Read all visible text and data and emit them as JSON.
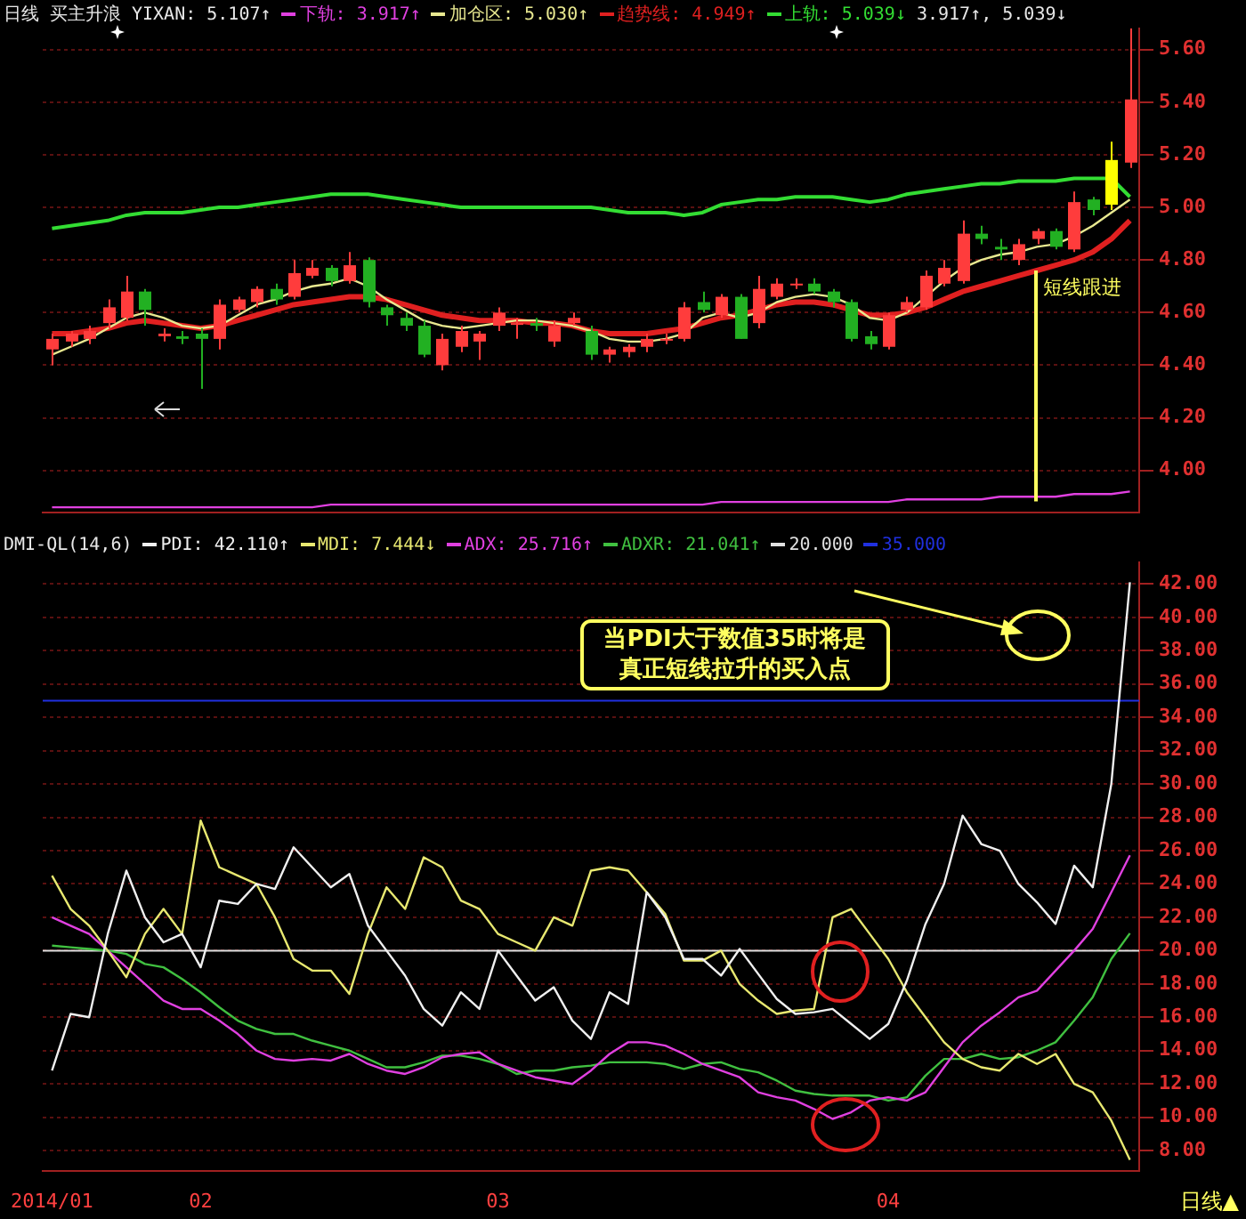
{
  "chart_data": [
    {
      "type": "candlestick",
      "title": "日线",
      "subtitle": "买主升浪",
      "annotations": [
        "YIXAN: 5.107↑",
        "3.917↑, 5.039↓",
        {
          "text": "短线跟进",
          "y": 4.88
        }
      ],
      "categories": [
        "2014/01",
        null,
        null,
        null,
        null,
        null,
        null,
        null,
        "02",
        null,
        null,
        null,
        null,
        null,
        null,
        null,
        null,
        null,
        null,
        null,
        null,
        null,
        null,
        null,
        "03",
        null,
        null,
        null,
        null,
        null,
        null,
        null,
        null,
        null,
        null,
        null,
        null,
        null,
        null,
        null,
        null,
        null,
        null,
        null,
        null,
        "04",
        null,
        null,
        null,
        null,
        null,
        null,
        null,
        null,
        null,
        null,
        null,
        null,
        null
      ],
      "ohlc": [
        [
          4.46,
          4.52,
          4.4,
          4.5
        ],
        [
          4.49,
          4.53,
          4.47,
          4.52
        ],
        [
          4.5,
          4.55,
          4.48,
          4.53
        ],
        [
          4.56,
          4.65,
          4.54,
          4.62
        ],
        [
          4.58,
          4.74,
          4.57,
          4.68
        ],
        [
          4.68,
          4.69,
          4.55,
          4.61
        ],
        [
          4.51,
          4.54,
          4.49,
          4.52
        ],
        [
          4.51,
          4.53,
          4.48,
          4.5
        ],
        [
          4.52,
          4.54,
          4.31,
          4.5
        ],
        [
          4.5,
          4.65,
          4.46,
          4.63
        ],
        [
          4.61,
          4.66,
          4.6,
          4.65
        ],
        [
          4.64,
          4.7,
          4.62,
          4.69
        ],
        [
          4.69,
          4.71,
          4.63,
          4.65
        ],
        [
          4.66,
          4.8,
          4.65,
          4.75
        ],
        [
          4.74,
          4.8,
          4.73,
          4.77
        ],
        [
          4.77,
          4.78,
          4.7,
          4.72
        ],
        [
          4.72,
          4.83,
          4.71,
          4.78
        ],
        [
          4.8,
          4.81,
          4.62,
          4.64
        ],
        [
          4.62,
          4.63,
          4.55,
          4.59
        ],
        [
          4.58,
          4.6,
          4.53,
          4.55
        ],
        [
          4.55,
          4.57,
          4.43,
          4.44
        ],
        [
          4.4,
          4.52,
          4.38,
          4.5
        ],
        [
          4.47,
          4.55,
          4.45,
          4.53
        ],
        [
          4.49,
          4.53,
          4.42,
          4.52
        ],
        [
          4.55,
          4.62,
          4.53,
          4.6
        ],
        [
          4.56,
          4.58,
          4.5,
          4.56
        ],
        [
          4.56,
          4.58,
          4.53,
          4.55
        ],
        [
          4.49,
          4.57,
          4.47,
          4.55
        ],
        [
          4.56,
          4.6,
          4.55,
          4.58
        ],
        [
          4.53,
          4.55,
          4.42,
          4.44
        ],
        [
          4.44,
          4.47,
          4.41,
          4.46
        ],
        [
          4.45,
          4.48,
          4.43,
          4.47
        ],
        [
          4.47,
          4.52,
          4.45,
          4.5
        ],
        [
          4.5,
          4.52,
          4.48,
          4.5
        ],
        [
          4.5,
          4.64,
          4.49,
          4.62
        ],
        [
          4.64,
          4.68,
          4.6,
          4.61
        ],
        [
          4.59,
          4.67,
          4.58,
          4.66
        ],
        [
          4.66,
          4.67,
          4.5,
          4.5
        ],
        [
          4.56,
          4.74,
          4.54,
          4.69
        ],
        [
          4.66,
          4.73,
          4.65,
          4.71
        ],
        [
          4.71,
          4.73,
          4.69,
          4.71
        ],
        [
          4.71,
          4.73,
          4.67,
          4.68
        ],
        [
          4.68,
          4.69,
          4.62,
          4.64
        ],
        [
          4.64,
          4.65,
          4.49,
          4.5
        ],
        [
          4.51,
          4.53,
          4.46,
          4.48
        ],
        [
          4.47,
          4.6,
          4.46,
          4.59
        ],
        [
          4.61,
          4.66,
          4.6,
          4.64
        ],
        [
          4.62,
          4.76,
          4.61,
          4.74
        ],
        [
          4.71,
          4.8,
          4.7,
          4.77
        ],
        [
          4.72,
          4.95,
          4.71,
          4.9
        ],
        [
          4.9,
          4.93,
          4.86,
          4.88
        ],
        [
          4.85,
          4.88,
          4.8,
          4.84
        ],
        [
          4.8,
          4.88,
          4.78,
          4.86
        ],
        [
          4.88,
          4.92,
          4.86,
          4.91
        ],
        [
          4.91,
          4.92,
          4.84,
          4.85
        ],
        [
          4.84,
          5.06,
          4.83,
          5.02
        ],
        [
          5.03,
          5.04,
          4.97,
          4.99
        ],
        [
          5.01,
          5.25,
          4.99,
          5.18
        ],
        [
          5.17,
          5.68,
          5.15,
          5.41
        ]
      ],
      "colors": [
        "#ff3c3c",
        "#ff3c3c",
        "#ff3c3c",
        "#ff3c3c",
        "#ff3c3c",
        "#22b022",
        "#ff3c3c",
        "#22b022",
        "#22b022",
        "#ff3c3c",
        "#ff3c3c",
        "#ff3c3c",
        "#22b022",
        "#ff3c3c",
        "#ff3c3c",
        "#22b022",
        "#ff3c3c",
        "#22b022",
        "#22b022",
        "#22b022",
        "#22b022",
        "#ff3c3c",
        "#ff3c3c",
        "#ff3c3c",
        "#ff3c3c",
        "#ff3c3c",
        "#22b022",
        "#ff3c3c",
        "#ff3c3c",
        "#22b022",
        "#ff3c3c",
        "#ff3c3c",
        "#ff3c3c",
        "#ff3c3c",
        "#ff3c3c",
        "#22b022",
        "#ff3c3c",
        "#22b022",
        "#ff3c3c",
        "#ff3c3c",
        "#ff3c3c",
        "#22b022",
        "#22b022",
        "#22b022",
        "#22b022",
        "#ff3c3c",
        "#ff3c3c",
        "#ff3c3c",
        "#ff3c3c",
        "#ff3c3c",
        "#22b022",
        "#22b022",
        "#ff3c3c",
        "#ff3c3c",
        "#22b022",
        "#ff3c3c",
        "#22b022",
        "#ffff00",
        "#ff3c3c"
      ],
      "series": [
        {
          "type": "line",
          "name": "下轨: 3.917↑",
          "color": "#e040e0",
          "values": [
            3.86,
            3.86,
            3.86,
            3.86,
            3.86,
            3.86,
            3.86,
            3.86,
            3.86,
            3.86,
            3.86,
            3.86,
            3.86,
            3.86,
            3.86,
            3.87,
            3.87,
            3.87,
            3.87,
            3.87,
            3.87,
            3.87,
            3.87,
            3.87,
            3.87,
            3.87,
            3.87,
            3.87,
            3.87,
            3.87,
            3.87,
            3.87,
            3.87,
            3.87,
            3.87,
            3.87,
            3.88,
            3.88,
            3.88,
            3.88,
            3.88,
            3.88,
            3.88,
            3.88,
            3.88,
            3.88,
            3.89,
            3.89,
            3.89,
            3.89,
            3.89,
            3.9,
            3.9,
            3.9,
            3.9,
            3.91,
            3.91,
            3.91,
            3.92
          ]
        },
        {
          "type": "line",
          "name": "加仓区: 5.030↑",
          "color": "#e8e890",
          "values": [
            4.44,
            4.47,
            4.5,
            4.54,
            4.58,
            4.6,
            4.58,
            4.55,
            4.54,
            4.55,
            4.59,
            4.63,
            4.65,
            4.68,
            4.7,
            4.71,
            4.73,
            4.7,
            4.65,
            4.61,
            4.57,
            4.55,
            4.54,
            4.55,
            4.56,
            4.57,
            4.57,
            4.56,
            4.55,
            4.53,
            4.5,
            4.49,
            4.49,
            4.5,
            4.52,
            4.58,
            4.6,
            4.58,
            4.6,
            4.64,
            4.66,
            4.67,
            4.66,
            4.63,
            4.58,
            4.57,
            4.6,
            4.66,
            4.72,
            4.77,
            4.8,
            4.82,
            4.83,
            4.85,
            4.86,
            4.89,
            4.93,
            4.98,
            5.03
          ]
        },
        {
          "type": "line",
          "name": "趋势线: 4.949↑",
          "color": "#e02020",
          "values": [
            4.52,
            4.52,
            4.53,
            4.54,
            4.56,
            4.57,
            4.56,
            4.55,
            4.54,
            4.55,
            4.57,
            4.59,
            4.61,
            4.63,
            4.64,
            4.65,
            4.66,
            4.66,
            4.65,
            4.63,
            4.61,
            4.59,
            4.58,
            4.57,
            4.57,
            4.57,
            4.56,
            4.56,
            4.55,
            4.53,
            4.52,
            4.52,
            4.52,
            4.53,
            4.54,
            4.56,
            4.58,
            4.59,
            4.61,
            4.63,
            4.64,
            4.64,
            4.63,
            4.61,
            4.59,
            4.59,
            4.6,
            4.62,
            4.65,
            4.68,
            4.7,
            4.72,
            4.74,
            4.76,
            4.78,
            4.8,
            4.83,
            4.88,
            4.95
          ]
        },
        {
          "type": "line",
          "name": "上轨: 5.039↓",
          "color": "#33dd33",
          "values": [
            4.92,
            4.93,
            4.94,
            4.95,
            4.97,
            4.98,
            4.98,
            4.98,
            4.99,
            5.0,
            5.0,
            5.01,
            5.02,
            5.03,
            5.04,
            5.05,
            5.05,
            5.05,
            5.04,
            5.03,
            5.02,
            5.01,
            5.0,
            5.0,
            5.0,
            5.0,
            5.0,
            5.0,
            5.0,
            5.0,
            4.99,
            4.98,
            4.98,
            4.98,
            4.97,
            4.98,
            5.01,
            5.02,
            5.03,
            5.03,
            5.04,
            5.04,
            5.04,
            5.03,
            5.02,
            5.03,
            5.05,
            5.06,
            5.07,
            5.08,
            5.09,
            5.09,
            5.1,
            5.1,
            5.1,
            5.11,
            5.11,
            5.11,
            5.04
          ]
        }
      ],
      "ylim": [
        3.84,
        5.68
      ],
      "yticks": [
        {
          "value": 4.0,
          "label": "4.00"
        },
        {
          "value": 4.2,
          "label": "4.20"
        },
        {
          "value": 4.4,
          "label": "4.40"
        },
        {
          "value": 4.6,
          "label": "4.60"
        },
        {
          "value": 4.8,
          "label": "4.80"
        },
        {
          "value": 5.0,
          "label": "5.00"
        },
        {
          "value": 5.2,
          "label": "5.20"
        },
        {
          "value": 5.4,
          "label": "5.40"
        },
        {
          "value": 5.6,
          "label": "5.60"
        }
      ],
      "grid": "y",
      "legend": "top left",
      "tick_labels": "y"
    },
    {
      "type": "line",
      "title": "DMI-QL(14,6)",
      "xlabel": "日线▲",
      "annotations": [
        {
          "text": "当PDI大于数值35时将是真正短线拉升的买入点",
          "y": 35
        }
      ],
      "categories": [
        "2014/01",
        null,
        null,
        null,
        null,
        null,
        null,
        null,
        "02",
        null,
        null,
        null,
        null,
        null,
        null,
        null,
        null,
        null,
        null,
        null,
        null,
        null,
        null,
        null,
        "03",
        null,
        null,
        null,
        null,
        null,
        null,
        null,
        null,
        null,
        null,
        null,
        null,
        null,
        null,
        null,
        null,
        null,
        null,
        null,
        null,
        "04",
        null,
        null,
        null,
        null,
        null,
        null,
        null,
        null,
        null,
        null,
        null,
        null,
        null
      ],
      "series": [
        {
          "name": "PDI: 42.110↑",
          "color": "#f0f0f0",
          "values": [
            12.8,
            16.2,
            16.0,
            21,
            24.8,
            22,
            20.5,
            21,
            19.0,
            23,
            22.8,
            24,
            23.7,
            26.2,
            25,
            23.8,
            24.6,
            21.5,
            20,
            18.5,
            16.5,
            15.5,
            17.5,
            16.5,
            20,
            18.5,
            17,
            17.8,
            15.8,
            14.7,
            17.5,
            16.8,
            23.5,
            22,
            19.5,
            19.5,
            18.5,
            20.1,
            18.6,
            17.1,
            16.2,
            16.3,
            16.5,
            15.6,
            14.7,
            15.6,
            18.2,
            21.6,
            24,
            28.1,
            26.4,
            26,
            24,
            22.9,
            21.6,
            25.1,
            23.8,
            30,
            42.11
          ]
        },
        {
          "name": "MDI: 7.444↓",
          "color": "#e8e870",
          "values": [
            24.5,
            22.5,
            21.5,
            20,
            18.4,
            21,
            22.5,
            21,
            27.8,
            25,
            24.5,
            24,
            22,
            19.5,
            18.8,
            18.8,
            17.4,
            21,
            23.8,
            22.5,
            25.6,
            25,
            23,
            22.5,
            21,
            20.5,
            20,
            22,
            21.5,
            24.8,
            25,
            24.8,
            23.5,
            22.2,
            19.4,
            19.4,
            20,
            18,
            17,
            16.2,
            16.4,
            16.5,
            22,
            22.5,
            21,
            19.5,
            17.5,
            16,
            14.5,
            13.5,
            13,
            12.8,
            13.8,
            13.2,
            13.8,
            12,
            11.5,
            9.8,
            7.444
          ]
        },
        {
          "name": "ADX: 25.716↑",
          "color": "#e040e0",
          "values": [
            22,
            21.5,
            21,
            20,
            19,
            18,
            17,
            16.5,
            16.5,
            15.8,
            15,
            14,
            13.5,
            13.4,
            13.5,
            13.4,
            13.8,
            13.2,
            12.8,
            12.6,
            13,
            13.6,
            13.8,
            13.9,
            13.2,
            12.8,
            12.4,
            12.2,
            12,
            12.8,
            13.8,
            14.5,
            14.5,
            14.3,
            13.8,
            13.2,
            12.8,
            12.4,
            11.5,
            11.2,
            11,
            10.5,
            9.9,
            10.3,
            11,
            11.2,
            11,
            11.5,
            13,
            14.5,
            15.5,
            16.3,
            17.2,
            17.6,
            18.8,
            20,
            21.3,
            23.5,
            25.716
          ]
        },
        {
          "name": "ADXR: 21.041↑",
          "color": "#40c040",
          "values": [
            20.3,
            20.2,
            20.1,
            20,
            19.8,
            19.2,
            19,
            18.3,
            17.5,
            16.6,
            15.8,
            15.3,
            15,
            15,
            14.6,
            14.3,
            14,
            13.5,
            13,
            13,
            13.3,
            13.7,
            13.7,
            13.5,
            13.2,
            12.6,
            12.8,
            12.8,
            13,
            13.1,
            13.3,
            13.3,
            13.3,
            13.2,
            12.9,
            13.2,
            13.3,
            12.9,
            12.7,
            12.2,
            11.6,
            11.4,
            11.3,
            11.3,
            11.3,
            11,
            11.2,
            12.5,
            13.5,
            13.5,
            13.8,
            13.5,
            13.6,
            14,
            14.5,
            15.8,
            17.2,
            19.5,
            21.041
          ]
        }
      ],
      "ref_lines": [
        {
          "axis": "y",
          "value": 20,
          "label": "20.000",
          "color": "#e0e0e0"
        },
        {
          "axis": "y",
          "value": 35,
          "label": "35.000",
          "color": "#2030e0"
        }
      ],
      "ylim": [
        6.8,
        43.3
      ],
      "yticks": [
        {
          "value": 8,
          "label": "8.00"
        },
        {
          "value": 10,
          "label": "10.00"
        },
        {
          "value": 12,
          "label": "12.00"
        },
        {
          "value": 14,
          "label": "14.00"
        },
        {
          "value": 16,
          "label": "16.00"
        },
        {
          "value": 18,
          "label": "18.00"
        },
        {
          "value": 20,
          "label": "20.00"
        },
        {
          "value": 22,
          "label": "22.00"
        },
        {
          "value": 24,
          "label": "24.00"
        },
        {
          "value": 26,
          "label": "26.00"
        },
        {
          "value": 28,
          "label": "28.00"
        },
        {
          "value": 30,
          "label": "30.00"
        },
        {
          "value": 32,
          "label": "32.00"
        },
        {
          "value": 34,
          "label": "34.00"
        },
        {
          "value": 36,
          "label": "36.00"
        },
        {
          "value": 38,
          "label": "38.00"
        },
        {
          "value": 40,
          "label": "40.00"
        },
        {
          "value": 42,
          "label": "42.00"
        }
      ],
      "grid": "y",
      "legend": "top left",
      "marker": "none"
    }
  ]
}
